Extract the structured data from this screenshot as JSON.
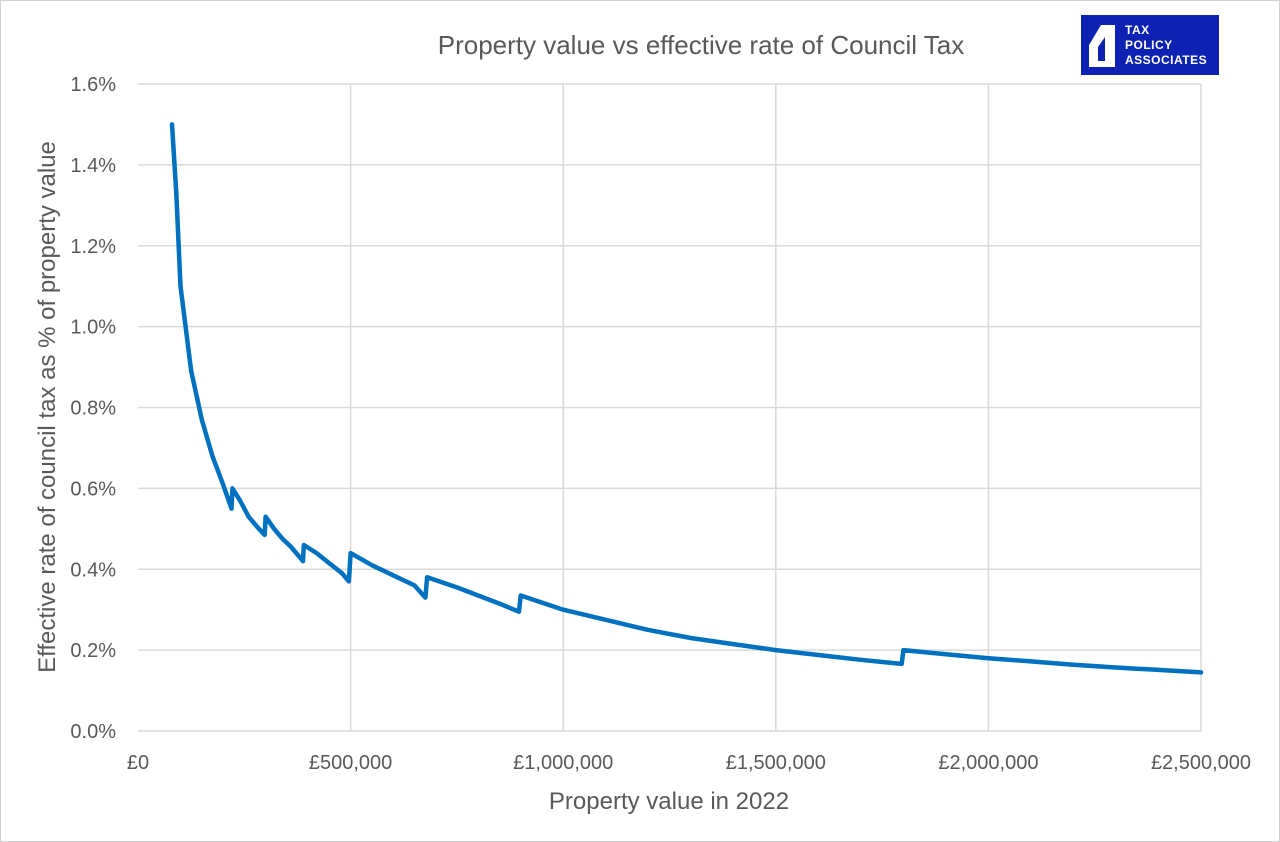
{
  "chart_data": {
    "type": "line",
    "title": "Property value vs effective rate of Council Tax",
    "xlabel": "Property value in 2022",
    "ylabel": "Effective rate of council tax as % of property value",
    "xlim": [
      0,
      2500000
    ],
    "ylim": [
      0,
      1.6
    ],
    "x_ticks": [
      0,
      500000,
      1000000,
      1500000,
      2000000,
      2500000
    ],
    "x_tick_labels": [
      "£0",
      "£500,000",
      "£1,000,000",
      "£1,500,000",
      "£2,000,000",
      "£2,500,000"
    ],
    "y_ticks": [
      0,
      0.2,
      0.4,
      0.6,
      0.8,
      1.0,
      1.2,
      1.4,
      1.6
    ],
    "y_tick_labels": [
      "0.0%",
      "0.2%",
      "0.4%",
      "0.6%",
      "0.8%",
      "1.0%",
      "1.2%",
      "1.4%",
      "1.6%"
    ],
    "grid": true,
    "legend": "none",
    "series": [
      {
        "color": "#0070c0",
        "x": [
          80000,
          90000,
          100000,
          125000,
          150000,
          175000,
          200000,
          220000,
          222000,
          240000,
          260000,
          280000,
          298000,
          300000,
          320000,
          340000,
          360000,
          380000,
          388000,
          390000,
          420000,
          450000,
          480000,
          496000,
          500000,
          550000,
          600000,
          650000,
          676000,
          680000,
          750000,
          800000,
          850000,
          896000,
          900000,
          1000000,
          1100000,
          1200000,
          1300000,
          1400000,
          1500000,
          1600000,
          1700000,
          1796000,
          1800000,
          1900000,
          2000000,
          2100000,
          2200000,
          2300000,
          2400000,
          2500000
        ],
        "y": [
          1.5,
          1.33,
          1.1,
          0.89,
          0.77,
          0.68,
          0.61,
          0.55,
          0.6,
          0.57,
          0.53,
          0.505,
          0.485,
          0.53,
          0.5,
          0.475,
          0.455,
          0.43,
          0.42,
          0.46,
          0.44,
          0.415,
          0.39,
          0.37,
          0.44,
          0.41,
          0.385,
          0.36,
          0.33,
          0.38,
          0.355,
          0.335,
          0.315,
          0.295,
          0.335,
          0.3,
          0.275,
          0.25,
          0.23,
          0.215,
          0.2,
          0.188,
          0.176,
          0.166,
          0.2,
          0.19,
          0.18,
          0.172,
          0.164,
          0.157,
          0.151,
          0.145
        ]
      }
    ]
  },
  "logo": {
    "lines": [
      "TAX",
      "POLICY",
      "ASSOCIATES"
    ],
    "color": "#0d22b3"
  }
}
